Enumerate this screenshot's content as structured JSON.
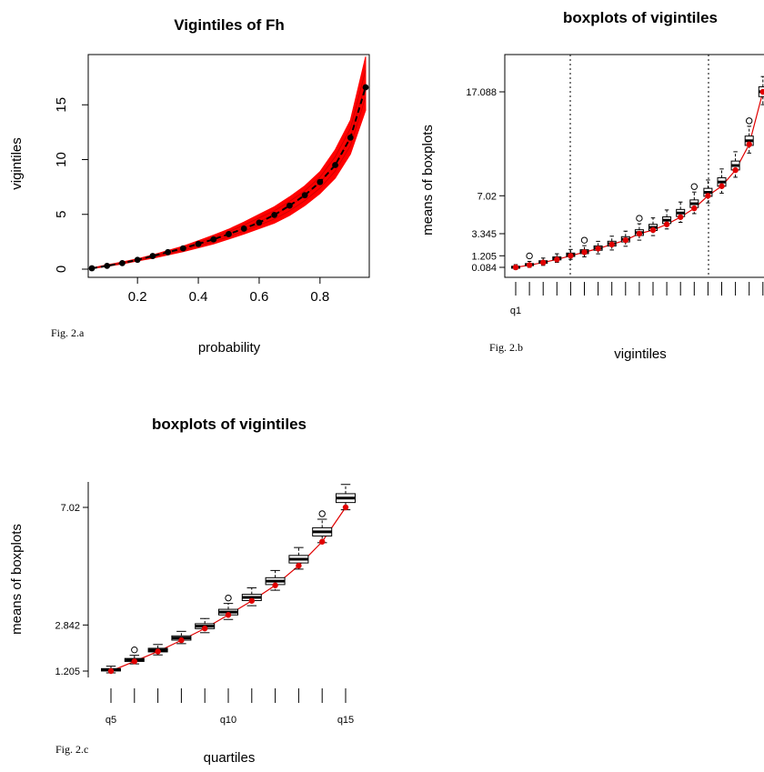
{
  "chart_data": [
    {
      "id": "a",
      "type": "line",
      "title": "Vigintiles of Fh",
      "xlabel": "probability",
      "ylabel": "vigintiles",
      "caption": "Fig. 2.a",
      "xlim": [
        0.05,
        0.95
      ],
      "ylim": [
        0,
        18.5
      ],
      "xticks": [
        "0.2",
        "0.4",
        "0.6",
        "0.8"
      ],
      "yticks": [
        "0",
        "5",
        "10",
        "15"
      ],
      "band_color": "#ff0000",
      "point_color": "#000000",
      "x": [
        0.05,
        0.1,
        0.15,
        0.2,
        0.25,
        0.3,
        0.35,
        0.4,
        0.45,
        0.5,
        0.55,
        0.6,
        0.65,
        0.7,
        0.75,
        0.8,
        0.85,
        0.9,
        0.95
      ],
      "band_lower": [
        0.05,
        0.25,
        0.48,
        0.75,
        1.0,
        1.3,
        1.6,
        1.95,
        2.3,
        2.75,
        3.2,
        3.7,
        4.2,
        4.9,
        5.8,
        6.9,
        8.3,
        10.5,
        14.5
      ],
      "band_upper": [
        0.12,
        0.4,
        0.65,
        0.95,
        1.3,
        1.7,
        2.1,
        2.6,
        3.1,
        3.65,
        4.3,
        5.0,
        5.7,
        6.6,
        7.6,
        8.9,
        10.9,
        13.6,
        19.4
      ],
      "points": [
        0.08,
        0.3,
        0.55,
        0.85,
        1.2,
        1.55,
        1.9,
        2.3,
        2.72,
        3.2,
        3.7,
        4.25,
        4.95,
        5.8,
        6.75,
        7.95,
        9.5,
        12.0,
        16.6
      ]
    },
    {
      "id": "b",
      "type": "boxplot",
      "title": "boxplots of vigintiles",
      "xlabel": "vigintiles",
      "ylabel": "means of boxplots",
      "caption": "Fig. 2.b",
      "xtick_label": "q1",
      "yticks": [
        "0.084",
        "1.205",
        "3.345",
        "7.02",
        "17.088"
      ],
      "means": [
        0.084,
        0.3,
        0.55,
        0.85,
        1.205,
        1.55,
        1.9,
        2.3,
        2.72,
        3.345,
        3.7,
        4.25,
        4.95,
        5.8,
        7.02,
        7.95,
        9.5,
        12.0,
        17.088
      ],
      "medians": [
        0.1,
        0.35,
        0.6,
        0.95,
        1.3,
        1.6,
        1.95,
        2.38,
        2.8,
        3.45,
        3.95,
        4.65,
        5.35,
        6.25,
        7.35,
        8.35,
        9.95,
        12.35,
        17.1
      ],
      "mean_color": "#e00000"
    },
    {
      "id": "c",
      "type": "boxplot",
      "title": "boxplots of vigintiles",
      "xlabel": "quartiles",
      "ylabel": "means of boxplots",
      "caption": "Fig. 2.c",
      "xticks": [
        "q5",
        "q10",
        "q15"
      ],
      "yticks": [
        "1.205",
        "2.842",
        "7.02"
      ],
      "means": [
        1.205,
        1.55,
        1.9,
        2.3,
        2.72,
        3.2,
        3.7,
        4.25,
        4.95,
        5.8,
        7.02
      ],
      "medians": [
        1.25,
        1.6,
        1.95,
        2.38,
        2.8,
        3.3,
        3.82,
        4.4,
        5.18,
        6.15,
        7.35
      ],
      "mean_color": "#e00000"
    }
  ]
}
